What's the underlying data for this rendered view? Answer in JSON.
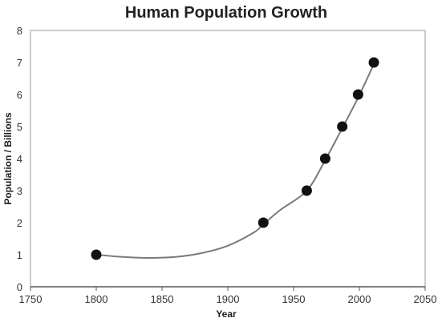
{
  "chart_data": {
    "type": "scatter",
    "title": "Human Population Growth",
    "xlabel": "Year",
    "ylabel": "Population / Billions",
    "xlim": [
      1750,
      2050
    ],
    "ylim": [
      0,
      8
    ],
    "xticks": [
      1750,
      1800,
      1850,
      1900,
      1950,
      2000,
      2050
    ],
    "yticks": [
      0,
      1,
      2,
      3,
      4,
      5,
      6,
      7,
      8
    ],
    "grid": false,
    "legend": "none",
    "series": [
      {
        "points": [
          {
            "x": 1800,
            "y": 1
          },
          {
            "x": 1927,
            "y": 2
          },
          {
            "x": 1960,
            "y": 3
          },
          {
            "x": 1974,
            "y": 4
          },
          {
            "x": 1987,
            "y": 5
          },
          {
            "x": 1999,
            "y": 6
          },
          {
            "x": 2011,
            "y": 7
          }
        ],
        "trendline": [
          {
            "x": 1800,
            "y": 1.0
          },
          {
            "x": 1820,
            "y": 0.93
          },
          {
            "x": 1840,
            "y": 0.9
          },
          {
            "x": 1860,
            "y": 0.93
          },
          {
            "x": 1880,
            "y": 1.05
          },
          {
            "x": 1900,
            "y": 1.28
          },
          {
            "x": 1920,
            "y": 1.7
          },
          {
            "x": 1927,
            "y": 1.95
          },
          {
            "x": 1940,
            "y": 2.4
          },
          {
            "x": 1960,
            "y": 3.0
          },
          {
            "x": 1974,
            "y": 3.95
          },
          {
            "x": 1987,
            "y": 4.95
          },
          {
            "x": 1999,
            "y": 5.9
          },
          {
            "x": 2011,
            "y": 6.95
          }
        ]
      }
    ],
    "colors": {
      "marker": "#111111",
      "line": "#7a7a7a",
      "frame": "#9a9a9a",
      "axis": "#555555"
    }
  }
}
